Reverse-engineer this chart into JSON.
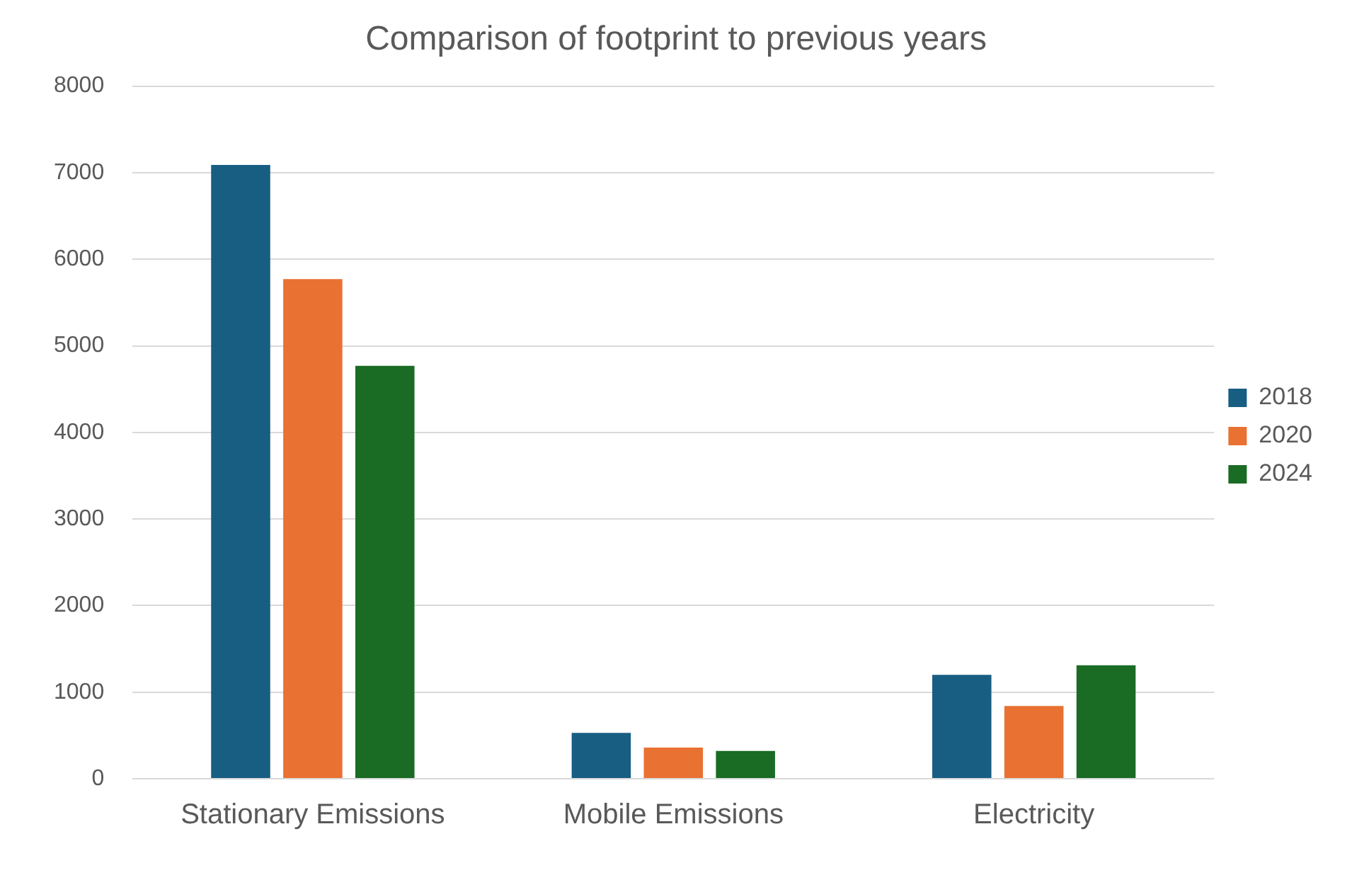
{
  "chart_data": {
    "type": "bar",
    "title": "Comparison of footprint to previous years",
    "categories": [
      "Stationary Emissions",
      "Mobile Emissions",
      "Electricity"
    ],
    "series": [
      {
        "name": "2018",
        "color": "#175e82",
        "values": [
          7090,
          530,
          1200
        ]
      },
      {
        "name": "2020",
        "color": "#e97132",
        "values": [
          5770,
          360,
          840
        ]
      },
      {
        "name": "2024",
        "color": "#1a6b24",
        "values": [
          4770,
          320,
          1310
        ]
      }
    ],
    "ylim": [
      0,
      8000
    ],
    "yticks": [
      0,
      1000,
      2000,
      3000,
      4000,
      5000,
      6000,
      7000,
      8000
    ],
    "grid": "y",
    "legend": "right"
  }
}
